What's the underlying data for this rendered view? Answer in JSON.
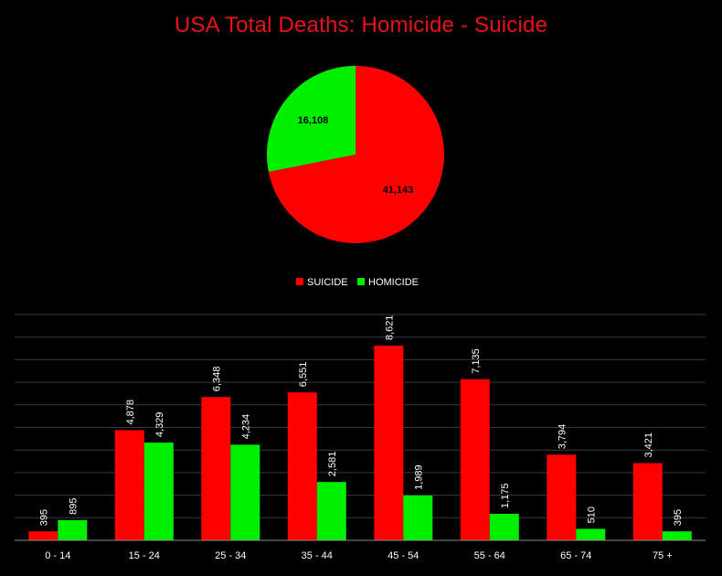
{
  "title": "USA Total Deaths: Homicide - Suicide",
  "colors": {
    "suicide": "#ff0000",
    "homicide": "#00ee00",
    "background": "#000000",
    "grid": "#3a3a3a",
    "axis": "#8c8c8c",
    "text": "#ffffff"
  },
  "chart_data": [
    {
      "type": "pie",
      "slices": [
        {
          "label": "SUICIDE",
          "value": 41143,
          "display": "41,143"
        },
        {
          "label": "HOMICIDE",
          "value": 16108,
          "display": "16,108"
        }
      ]
    },
    {
      "type": "bar",
      "categories": [
        "0 - 14",
        "15 - 24",
        "25 - 34",
        "35 - 44",
        "45 - 54",
        "55 - 64",
        "65 - 74",
        "75 +"
      ],
      "series": [
        {
          "name": "SUICIDE",
          "values": [
            395,
            4878,
            6348,
            6551,
            8621,
            7135,
            3794,
            3421
          ]
        },
        {
          "name": "HOMICIDE",
          "values": [
            895,
            4329,
            4234,
            2581,
            1989,
            1175,
            510,
            395
          ]
        }
      ],
      "value_labels": {
        "SUICIDE": [
          "395",
          "4,878",
          "6,348",
          "6,551",
          "8,621",
          "7,135",
          "3,794",
          "3,421"
        ],
        "HOMICIDE": [
          "895",
          "4,329",
          "4,234",
          "2,581",
          "1,989",
          "1,175",
          "510",
          "395"
        ]
      },
      "ylim": [
        0,
        10000
      ],
      "grid": true,
      "legend": {
        "position": "top",
        "entries": [
          "SUICIDE",
          "HOMICIDE"
        ]
      }
    }
  ]
}
